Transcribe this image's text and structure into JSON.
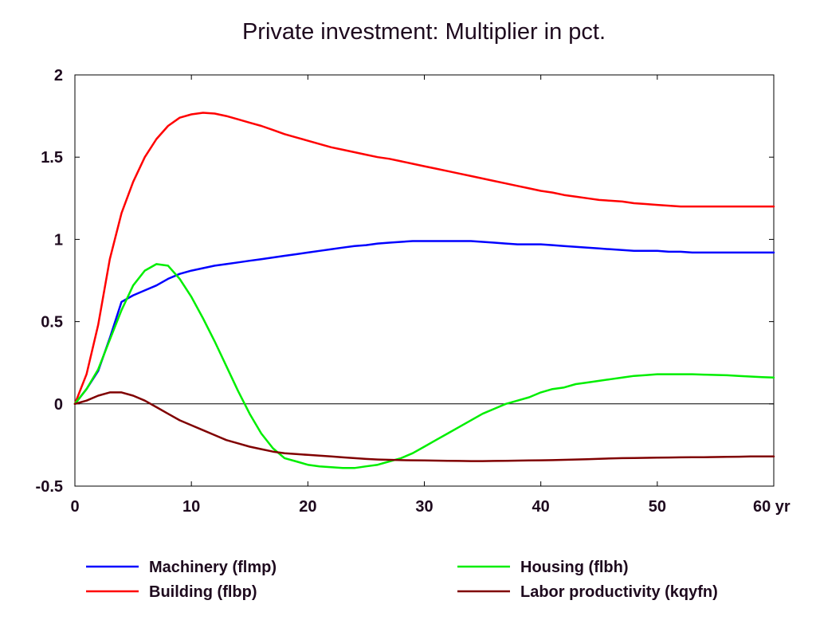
{
  "chart_data": {
    "type": "line",
    "title": "Private investment: Multiplier in pct.",
    "xlabel": "",
    "ylabel": "",
    "xlim": [
      0,
      60
    ],
    "ylim": [
      -0.5,
      2
    ],
    "x_ticks": [
      0,
      10,
      20,
      30,
      40,
      50,
      60
    ],
    "x_tick_labels": [
      "0",
      "10",
      "20",
      "30",
      "40",
      "50",
      "60 yr"
    ],
    "y_ticks": [
      -0.5,
      0,
      0.5,
      1,
      1.5,
      2
    ],
    "y_tick_labels": [
      "-0.5",
      "0",
      "0.5",
      "1",
      "1.5",
      "2"
    ],
    "zero_line": true,
    "grid": false,
    "legend_position": "bottom",
    "x": [
      0,
      1,
      2,
      3,
      4,
      5,
      6,
      7,
      8,
      9,
      10,
      11,
      12,
      13,
      14,
      15,
      16,
      17,
      18,
      19,
      20,
      21,
      22,
      23,
      24,
      25,
      26,
      27,
      28,
      29,
      30,
      31,
      32,
      33,
      34,
      35,
      36,
      37,
      38,
      39,
      40,
      41,
      42,
      43,
      44,
      45,
      46,
      47,
      48,
      49,
      50,
      51,
      52,
      53,
      54,
      55,
      56,
      57,
      58,
      59,
      60
    ],
    "series": [
      {
        "name": "Machinery (flmp)",
        "color": "#0000ff",
        "values": [
          0,
          0.09,
          0.2,
          0.4,
          0.62,
          0.66,
          0.69,
          0.72,
          0.76,
          0.79,
          0.81,
          0.825,
          0.84,
          0.85,
          0.86,
          0.87,
          0.88,
          0.89,
          0.9,
          0.91,
          0.92,
          0.93,
          0.94,
          0.95,
          0.96,
          0.965,
          0.975,
          0.98,
          0.985,
          0.99,
          0.99,
          0.99,
          0.99,
          0.99,
          0.99,
          0.985,
          0.98,
          0.975,
          0.97,
          0.97,
          0.97,
          0.965,
          0.96,
          0.955,
          0.95,
          0.945,
          0.94,
          0.935,
          0.93,
          0.93,
          0.93,
          0.925,
          0.925,
          0.92,
          0.92,
          0.92,
          0.92,
          0.92,
          0.92,
          0.92,
          0.92
        ]
      },
      {
        "name": "Building (flbp)",
        "color": "#ff0000",
        "values": [
          0,
          0.18,
          0.48,
          0.88,
          1.16,
          1.35,
          1.5,
          1.61,
          1.69,
          1.74,
          1.76,
          1.77,
          1.765,
          1.75,
          1.73,
          1.71,
          1.69,
          1.665,
          1.64,
          1.62,
          1.6,
          1.58,
          1.56,
          1.545,
          1.53,
          1.515,
          1.5,
          1.49,
          1.475,
          1.46,
          1.445,
          1.43,
          1.415,
          1.4,
          1.385,
          1.37,
          1.355,
          1.34,
          1.325,
          1.31,
          1.295,
          1.285,
          1.27,
          1.26,
          1.25,
          1.24,
          1.235,
          1.23,
          1.22,
          1.215,
          1.21,
          1.205,
          1.2,
          1.2,
          1.2,
          1.2,
          1.2,
          1.2,
          1.2,
          1.2,
          1.2
        ]
      },
      {
        "name": "Housing (flbh)",
        "color": "#00ee00",
        "values": [
          0,
          0.09,
          0.21,
          0.39,
          0.57,
          0.72,
          0.81,
          0.85,
          0.84,
          0.76,
          0.65,
          0.52,
          0.38,
          0.23,
          0.08,
          -0.06,
          -0.18,
          -0.27,
          -0.33,
          -0.35,
          -0.37,
          -0.38,
          -0.385,
          -0.39,
          -0.39,
          -0.38,
          -0.37,
          -0.35,
          -0.33,
          -0.3,
          -0.26,
          -0.22,
          -0.18,
          -0.14,
          -0.1,
          -0.06,
          -0.03,
          0.0,
          0.02,
          0.04,
          0.07,
          0.09,
          0.1,
          0.12,
          0.13,
          0.14,
          0.15,
          0.16,
          0.17,
          0.175,
          0.18,
          0.18,
          0.18,
          0.18,
          0.178,
          0.176,
          0.174,
          0.17,
          0.166,
          0.163,
          0.16
        ]
      },
      {
        "name": "Labor productivity (kqyfn)",
        "color": "#800000",
        "values": [
          0,
          0.02,
          0.05,
          0.07,
          0.07,
          0.05,
          0.02,
          -0.02,
          -0.06,
          -0.1,
          -0.13,
          -0.16,
          -0.19,
          -0.22,
          -0.24,
          -0.26,
          -0.275,
          -0.29,
          -0.3,
          -0.305,
          -0.31,
          -0.315,
          -0.32,
          -0.325,
          -0.33,
          -0.335,
          -0.338,
          -0.34,
          -0.342,
          -0.343,
          -0.344,
          -0.345,
          -0.346,
          -0.347,
          -0.348,
          -0.348,
          -0.347,
          -0.346,
          -0.345,
          -0.344,
          -0.343,
          -0.342,
          -0.34,
          -0.338,
          -0.336,
          -0.334,
          -0.332,
          -0.33,
          -0.329,
          -0.328,
          -0.327,
          -0.326,
          -0.325,
          -0.324,
          -0.324,
          -0.323,
          -0.322,
          -0.321,
          -0.32,
          -0.32,
          -0.32
        ]
      }
    ]
  }
}
